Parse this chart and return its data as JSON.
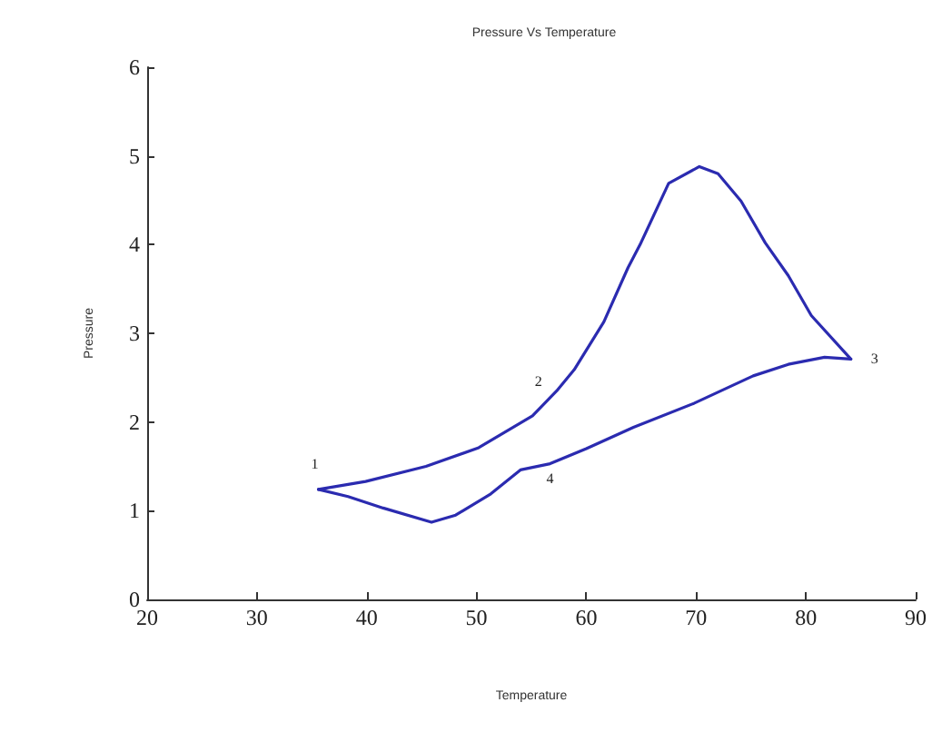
{
  "chart_data": {
    "type": "line",
    "title": "Pressure Vs Temperature",
    "xlabel": "Temperature",
    "ylabel": "Pressure",
    "xlim": [
      20,
      90
    ],
    "xticks": [
      20,
      30,
      40,
      50,
      60,
      70,
      80,
      90
    ],
    "ylim": [
      0,
      6
    ],
    "yticks": [
      0,
      1,
      2,
      3,
      4,
      5,
      6
    ],
    "grid": false,
    "marker": "none",
    "line_style": "solid",
    "series": [
      {
        "color": "#2b2bb0",
        "x": [
          35.6,
          39.9,
          45.4,
          50.2,
          55.1,
          57.3,
          58.9,
          61.6,
          63.8,
          64.9,
          67.5,
          70.3,
          72,
          74.1,
          76.3,
          78.4,
          80.5,
          84.1
        ],
        "values": [
          1.24,
          1.33,
          1.5,
          1.71,
          2.07,
          2.35,
          2.59,
          3.13,
          3.74,
          4.0,
          4.69,
          4.88,
          4.8,
          4.49,
          4.02,
          3.65,
          3.2,
          2.71
        ]
      },
      {
        "color": "#2b2bb0",
        "x": [
          35.6,
          38.3,
          41.5,
          45.9,
          48.1,
          51.3,
          54,
          56.7,
          60,
          64.3,
          69.8,
          75.2,
          78.4,
          81.7,
          84.1
        ],
        "values": [
          1.24,
          1.16,
          1.03,
          0.87,
          0.95,
          1.19,
          1.46,
          1.53,
          1.7,
          1.94,
          2.21,
          2.52,
          2.65,
          2.73,
          2.71
        ]
      }
    ],
    "annotations": [
      {
        "text": "1",
        "x": 35.6,
        "y": 1.24
      },
      {
        "text": "2",
        "x": 57.3,
        "y": 2.35
      },
      {
        "text": "3",
        "x": 84.1,
        "y": 2.71
      },
      {
        "text": "4",
        "x": 56.7,
        "y": 1.53
      }
    ]
  }
}
